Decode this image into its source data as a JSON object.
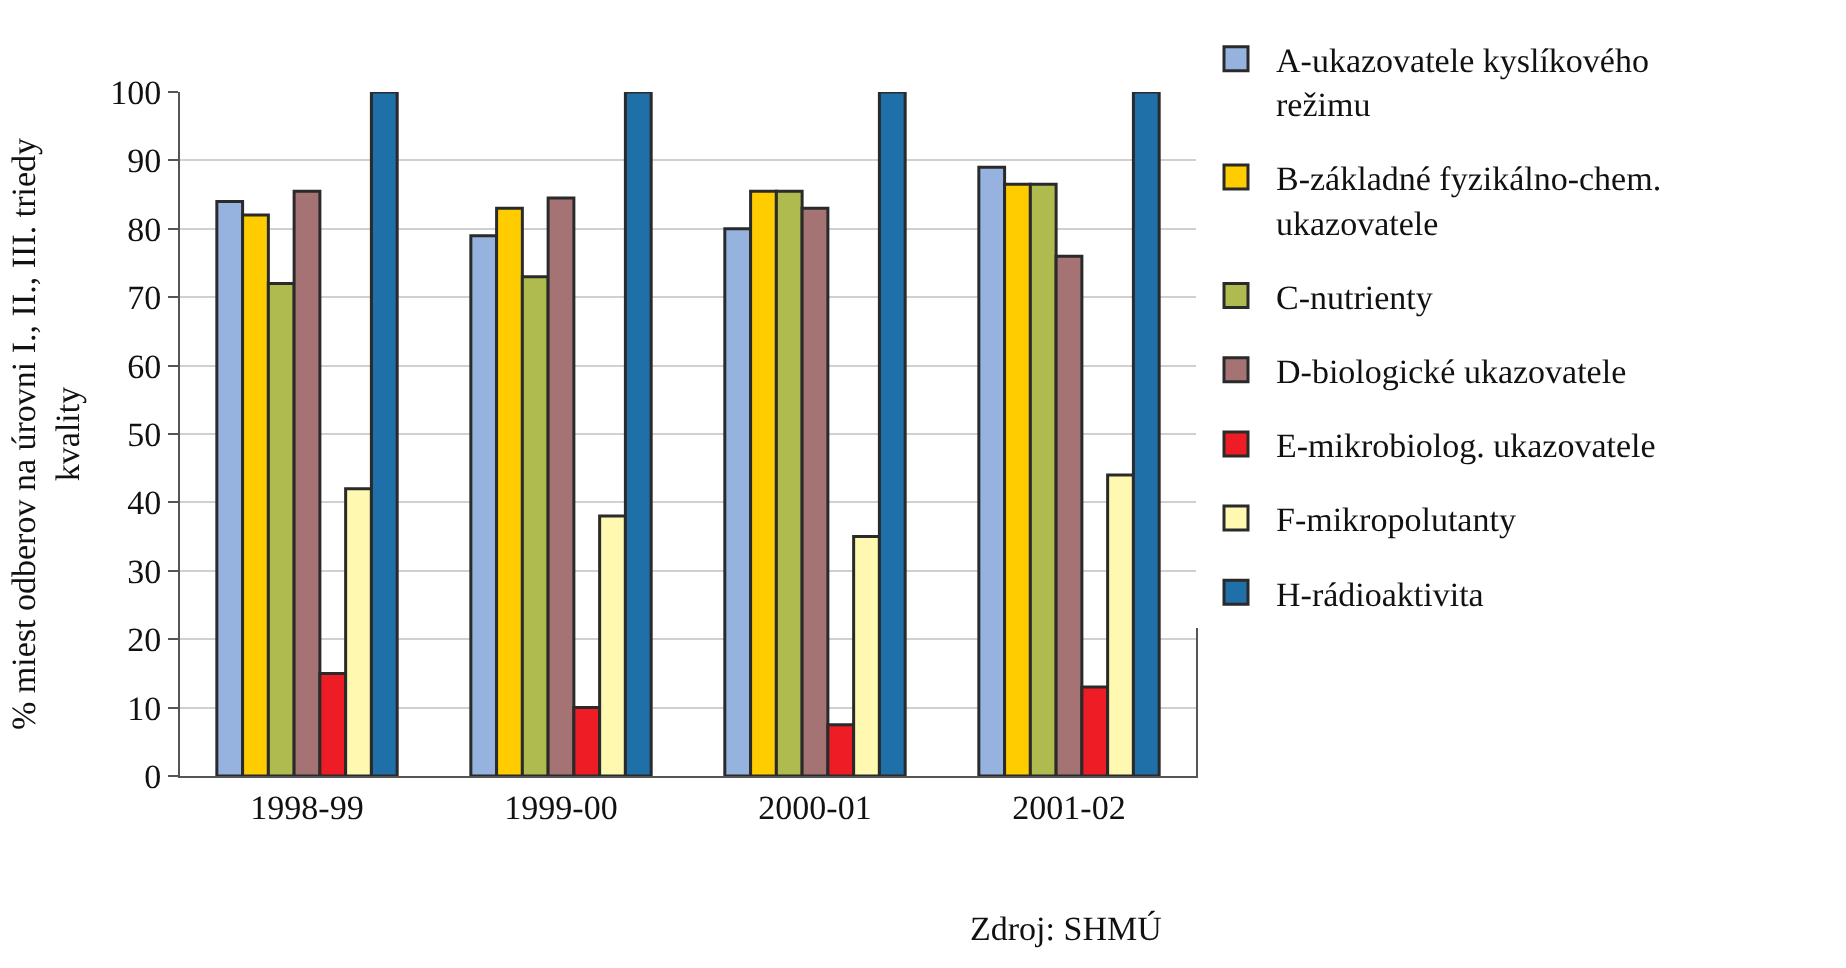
{
  "chart_data": {
    "type": "bar",
    "ylabel": "% miest odberov na úrovni I., II., III. triedy kvality",
    "categories": [
      "1998-99",
      "1999-00",
      "2000-01",
      "2001-02"
    ],
    "series": [
      {
        "name": "A-ukazovatele kyslíkového režimu",
        "color": "#95b3de",
        "values": [
          84,
          79,
          80,
          89
        ]
      },
      {
        "name": "B-základné fyzikálno-chem. ukazovatele",
        "color": "#ffcc00",
        "values": [
          82,
          83,
          85.5,
          86.5
        ]
      },
      {
        "name": "C-nutrienty",
        "color": "#afbb4f",
        "values": [
          72,
          73,
          85.5,
          86.5
        ]
      },
      {
        "name": "D-biologické ukazovatele",
        "color": "#a57374",
        "values": [
          85.5,
          84.5,
          83,
          76
        ]
      },
      {
        "name": "E-mikrobiolog. ukazovatele",
        "color": "#ee1c25",
        "values": [
          15,
          10,
          7.5,
          13
        ]
      },
      {
        "name": "F-mikropolutanty",
        "color": "#fff8b0",
        "values": [
          42,
          38,
          35,
          44
        ]
      },
      {
        "name": "H-rádioaktivita",
        "color": "#1f6fa8",
        "values": [
          100,
          100,
          100,
          100
        ]
      }
    ],
    "ylim": [
      0,
      100
    ],
    "yticks": [
      0,
      10,
      20,
      30,
      40,
      50,
      60,
      70,
      80,
      90,
      100
    ],
    "grid": "y",
    "legend": "right",
    "annotations": [
      "Zdroj: SHMÚ"
    ]
  }
}
